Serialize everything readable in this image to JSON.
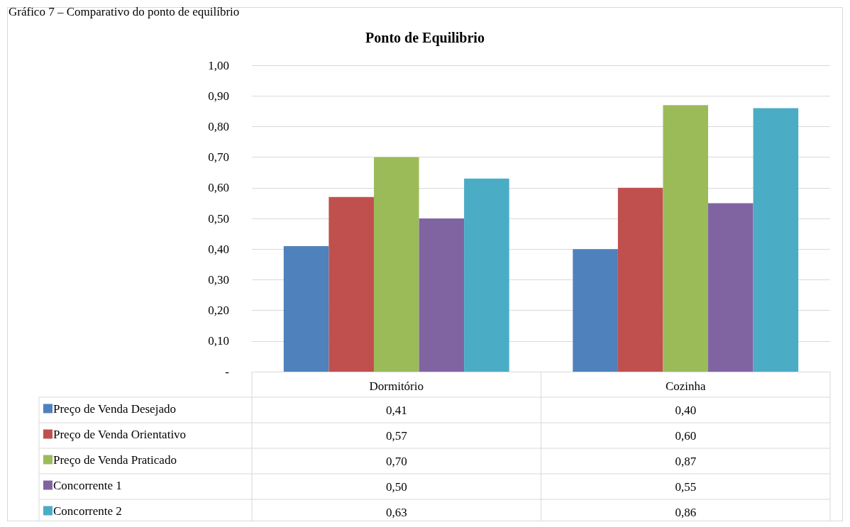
{
  "chart_data": {
    "type": "bar",
    "title": "Ponto de Equilibrio",
    "annotations": [
      "Gráfico 7 – Comparativo do ponto de equilíbrio"
    ],
    "categories": [
      "Dormitório",
      "Cozinha"
    ],
    "series": [
      {
        "name": "Preço de Venda Desejado",
        "color": "#4f81bd",
        "values": [
          0.41,
          0.4
        ],
        "value_labels": [
          "0,41",
          "0,40"
        ]
      },
      {
        "name": "Preço de Venda Orientativo",
        "color": "#c0504d",
        "values": [
          0.57,
          0.6
        ],
        "value_labels": [
          "0,57",
          "0,60"
        ]
      },
      {
        "name": "Preço de Venda Praticado",
        "color": "#9bbb59",
        "values": [
          0.7,
          0.87
        ],
        "value_labels": [
          "0,70",
          "0,87"
        ]
      },
      {
        "name": "Concorrente 1",
        "color": "#8064a2",
        "values": [
          0.5,
          0.55
        ],
        "value_labels": [
          "0,50",
          "0,55"
        ]
      },
      {
        "name": "Concorrente 2",
        "color": "#4bacc6",
        "values": [
          0.63,
          0.86
        ],
        "value_labels": [
          "0,63",
          "0,86"
        ]
      }
    ],
    "ylim": [
      0,
      1
    ],
    "yticks": [
      {
        "value": 0,
        "label": "-"
      },
      {
        "value": 0.1,
        "label": "0,10"
      },
      {
        "value": 0.2,
        "label": "0,20"
      },
      {
        "value": 0.3,
        "label": "0,30"
      },
      {
        "value": 0.4,
        "label": "0,40"
      },
      {
        "value": 0.5,
        "label": "0,50"
      },
      {
        "value": 0.6,
        "label": "0,60"
      },
      {
        "value": 0.7,
        "label": "0,70"
      },
      {
        "value": 0.8,
        "label": "0,80"
      },
      {
        "value": 0.9,
        "label": "0,90"
      },
      {
        "value": 1,
        "label": "1,00"
      }
    ],
    "grid": "y",
    "legend": "bottom left"
  }
}
